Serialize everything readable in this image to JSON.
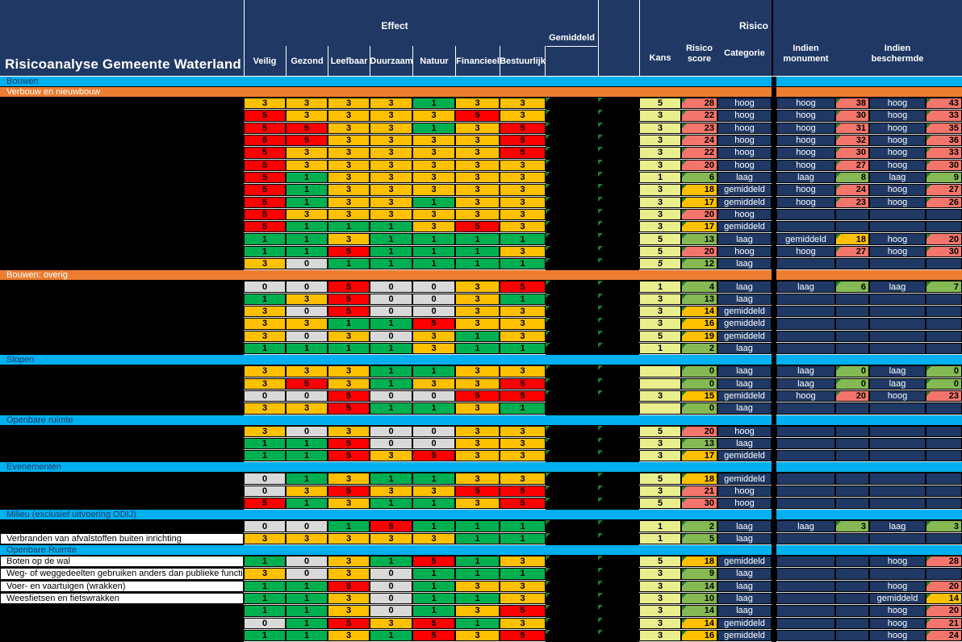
{
  "title": "Risicoanalyse Gemeente Waterland",
  "header": {
    "effect_group": "Effect",
    "effect_cols": [
      "Veilig",
      "Gezond",
      "Leefbaar",
      "Duurzaam",
      "Natuur",
      "Financieel",
      "Bestuurlijk"
    ],
    "gemiddeld": "Gemiddeld",
    "risico": "Risico",
    "kans": "Kans",
    "risico_score": "Risico score",
    "categorie": "Categorie",
    "indien_monument": "Indien monument",
    "indien_beschermde": "Indien beschermde"
  },
  "colors": {
    "navy": "#1f3864",
    "cyan": "#00b0f0",
    "orange_section": "#ed7d31",
    "kans_fill": "#eaef8d",
    "score_hoog": "#f4756b",
    "score_gemiddeld": "#ffc000",
    "score_laag": "#84b953",
    "triangle": "#1e7a34",
    "effect_legend": {
      "0": "#d9d9d9",
      "1": "#00b050",
      "3": "#ffc000",
      "5": "#ff0000"
    }
  },
  "rows": [
    {
      "t": "sec",
      "c": "cyan",
      "label": "Bouwen"
    },
    {
      "t": "sec",
      "c": "orange",
      "label": "Verbouw en nieuwbouw"
    },
    {
      "t": "d",
      "label": "",
      "effect": [
        3,
        3,
        3,
        3,
        1,
        3,
        3
      ],
      "kans": "5",
      "score": "28",
      "sc": "h",
      "cat": "hoog",
      "mon": {
        "c": "hoog",
        "s": "38",
        "sc": "h"
      },
      "bes": {
        "c": "hoog",
        "s": "43",
        "sc": "h"
      }
    },
    {
      "t": "d",
      "label": "",
      "effect": [
        5,
        3,
        3,
        3,
        3,
        5,
        3
      ],
      "kans": "3",
      "score": "22",
      "sc": "h",
      "cat": "hoog",
      "mon": {
        "c": "hoog",
        "s": "30",
        "sc": "h"
      },
      "bes": {
        "c": "hoog",
        "s": "33",
        "sc": "h"
      }
    },
    {
      "t": "d",
      "label": "",
      "effect": [
        5,
        5,
        3,
        3,
        1,
        3,
        5
      ],
      "kans": "3",
      "score": "23",
      "sc": "h",
      "cat": "hoog",
      "mon": {
        "c": "hoog",
        "s": "31",
        "sc": "h"
      },
      "bes": {
        "c": "hoog",
        "s": "35",
        "sc": "h"
      }
    },
    {
      "t": "d",
      "label": "",
      "effect": [
        5,
        5,
        3,
        3,
        3,
        3,
        5
      ],
      "kans": "3",
      "score": "24",
      "sc": "h",
      "cat": "hoog",
      "mon": {
        "c": "hoog",
        "s": "32",
        "sc": "h"
      },
      "bes": {
        "c": "hoog",
        "s": "36",
        "sc": "h"
      }
    },
    {
      "t": "d",
      "label": "",
      "effect": [
        5,
        3,
        3,
        3,
        3,
        3,
        5
      ],
      "kans": "3",
      "score": "22",
      "sc": "h",
      "cat": "hoog",
      "mon": {
        "c": "hoog",
        "s": "30",
        "sc": "h"
      },
      "bes": {
        "c": "hoog",
        "s": "33",
        "sc": "h"
      }
    },
    {
      "t": "d",
      "label": "",
      "effect": [
        5,
        3,
        3,
        3,
        3,
        3,
        3
      ],
      "kans": "3",
      "score": "20",
      "sc": "h",
      "cat": "hoog",
      "mon": {
        "c": "hoog",
        "s": "27",
        "sc": "h"
      },
      "bes": {
        "c": "hoog",
        "s": "30",
        "sc": "h"
      }
    },
    {
      "t": "d",
      "label": "",
      "effect": [
        5,
        1,
        3,
        3,
        3,
        3,
        3
      ],
      "kans": "1",
      "score": "6",
      "sc": "l",
      "cat": "laag",
      "mon": {
        "c": "laag",
        "s": "8",
        "sc": "l"
      },
      "bes": {
        "c": "laag",
        "s": "9",
        "sc": "l"
      }
    },
    {
      "t": "d",
      "label": "",
      "effect": [
        5,
        1,
        3,
        3,
        3,
        3,
        3
      ],
      "kans": "3",
      "score": "18",
      "sc": "m",
      "cat": "gemiddeld",
      "mon": {
        "c": "hoog",
        "s": "24",
        "sc": "h"
      },
      "bes": {
        "c": "hoog",
        "s": "27",
        "sc": "h"
      }
    },
    {
      "t": "d",
      "label": "",
      "effect": [
        5,
        1,
        3,
        3,
        1,
        3,
        3
      ],
      "kans": "3",
      "score": "17",
      "sc": "m",
      "cat": "gemiddeld",
      "mon": {
        "c": "hoog",
        "s": "23",
        "sc": "h"
      },
      "bes": {
        "c": "hoog",
        "s": "26",
        "sc": "h"
      }
    },
    {
      "t": "d",
      "label": "",
      "effect": [
        5,
        3,
        3,
        3,
        3,
        3,
        3
      ],
      "kans": "3",
      "score": "20",
      "sc": "h",
      "cat": "hoog",
      "mon": null,
      "bes": null
    },
    {
      "t": "d",
      "label": "",
      "effect": [
        5,
        1,
        1,
        1,
        3,
        5,
        3
      ],
      "kans": "3",
      "score": "17",
      "sc": "m",
      "cat": "gemiddeld",
      "mon": null,
      "bes": null
    },
    {
      "t": "d",
      "label": "",
      "effect": [
        1,
        1,
        3,
        1,
        1,
        1,
        1
      ],
      "kans": "5",
      "score": "13",
      "sc": "l",
      "cat": "laag",
      "mon": {
        "c": "gemiddeld",
        "s": "18",
        "sc": "m"
      },
      "bes": {
        "c": "hoog",
        "s": "20",
        "sc": "h"
      }
    },
    {
      "t": "d",
      "label": "",
      "effect": [
        1,
        1,
        5,
        1,
        1,
        1,
        3
      ],
      "kans": "5",
      "score": "20",
      "sc": "h",
      "cat": "hoog",
      "mon": {
        "c": "hoog",
        "s": "27",
        "sc": "h"
      },
      "bes": {
        "c": "hoog",
        "s": "30",
        "sc": "h"
      }
    },
    {
      "t": "d",
      "label": "",
      "effect": [
        3,
        0,
        1,
        1,
        1,
        1,
        1
      ],
      "kans": "5",
      "ki": true,
      "score": "12",
      "sc": "l",
      "cat": "laag",
      "mon": null,
      "bes": null
    },
    {
      "t": "sec",
      "c": "orange",
      "label": "Bouwen: overig"
    },
    {
      "t": "d",
      "label": "",
      "effect": [
        0,
        0,
        5,
        0,
        0,
        3,
        5
      ],
      "kans": "1",
      "score": "4",
      "sc": "l",
      "cat": "laag",
      "mon": {
        "c": "laag",
        "s": "6",
        "sc": "l"
      },
      "bes": {
        "c": "laag",
        "s": "7",
        "sc": "l"
      }
    },
    {
      "t": "d",
      "label": "",
      "effect": [
        1,
        3,
        5,
        0,
        0,
        3,
        1
      ],
      "kans": "3",
      "score": "13",
      "sc": "l",
      "cat": "laag",
      "mon": null,
      "bes": null
    },
    {
      "t": "d",
      "label": "",
      "effect": [
        3,
        0,
        5,
        0,
        0,
        3,
        3
      ],
      "kans": "3",
      "score": "14",
      "sc": "m",
      "cat": "gemiddeld",
      "mon": null,
      "bes": null
    },
    {
      "t": "d",
      "label": "",
      "effect": [
        3,
        3,
        1,
        1,
        5,
        3,
        3
      ],
      "kans": "3",
      "score": "16",
      "sc": "m",
      "cat": "gemiddeld",
      "mon": null,
      "bes": null
    },
    {
      "t": "d",
      "label": "",
      "effect": [
        3,
        0,
        3,
        0,
        3,
        1,
        3
      ],
      "kans": "5",
      "score": "19",
      "sc": "m",
      "cat": "gemiddeld",
      "mon": null,
      "bes": null
    },
    {
      "t": "d",
      "label": "",
      "effect": [
        1,
        1,
        1,
        1,
        3,
        1,
        1
      ],
      "kans": "1",
      "score": "2",
      "sc": "l",
      "cat": "laag",
      "mon": null,
      "bes": null
    },
    {
      "t": "sec",
      "c": "cyan",
      "label": "Slopen"
    },
    {
      "t": "d",
      "label": "",
      "effect": [
        3,
        3,
        3,
        1,
        1,
        3,
        3
      ],
      "kans": "",
      "score": "0",
      "sc": "l",
      "cat": "laag",
      "mon": {
        "c": "laag",
        "s": "0",
        "sc": "l"
      },
      "bes": {
        "c": "laag",
        "s": "0",
        "sc": "l"
      }
    },
    {
      "t": "d",
      "label": "",
      "effect": [
        3,
        5,
        3,
        1,
        3,
        3,
        5
      ],
      "kans": "",
      "score": "0",
      "sc": "l",
      "cat": "laag",
      "mon": {
        "c": "laag",
        "s": "0",
        "sc": "l"
      },
      "bes": {
        "c": "laag",
        "s": "0",
        "sc": "l"
      }
    },
    {
      "t": "d",
      "label": "",
      "effect": [
        0,
        0,
        5,
        0,
        0,
        5,
        5
      ],
      "kans": "3",
      "score": "15",
      "sc": "m",
      "cat": "gemiddeld",
      "mon": {
        "c": "hoog",
        "s": "20",
        "sc": "h"
      },
      "bes": {
        "c": "hoog",
        "s": "23",
        "sc": "h"
      }
    },
    {
      "t": "d",
      "label": "",
      "effect": [
        3,
        3,
        5,
        1,
        1,
        3,
        1
      ],
      "kans": "",
      "score": "0",
      "sc": "l",
      "cat": "laag",
      "mon": null,
      "bes": null,
      "tri": false
    },
    {
      "t": "sec",
      "c": "cyan",
      "label": "Openbare ruimte"
    },
    {
      "t": "d",
      "label": "",
      "effect": [
        3,
        0,
        3,
        0,
        0,
        3,
        3
      ],
      "kans": "5",
      "score": "20",
      "sc": "h",
      "cat": "hoog",
      "mon": null,
      "bes": null
    },
    {
      "t": "d",
      "label": "",
      "effect": [
        1,
        1,
        5,
        0,
        0,
        3,
        3
      ],
      "kans": "3",
      "score": "13",
      "sc": "l",
      "cat": "laag",
      "mon": null,
      "bes": null
    },
    {
      "t": "d",
      "label": "",
      "effect": [
        1,
        1,
        5,
        3,
        5,
        3,
        3
      ],
      "kans": "3",
      "score": "17",
      "sc": "m",
      "cat": "gemiddeld",
      "mon": null,
      "bes": null
    },
    {
      "t": "sec",
      "c": "cyan",
      "label": "Evenementen"
    },
    {
      "t": "d",
      "label": "",
      "effect": [
        0,
        1,
        3,
        1,
        1,
        3,
        3
      ],
      "kans": "5",
      "score": "18",
      "sc": "m",
      "cat": "gemiddeld",
      "mon": null,
      "bes": null
    },
    {
      "t": "d",
      "label": "",
      "effect": [
        0,
        3,
        5,
        3,
        3,
        5,
        5
      ],
      "kans": "3",
      "score": "21",
      "sc": "h",
      "cat": "hoog",
      "mon": null,
      "bes": null
    },
    {
      "t": "d",
      "label": "",
      "effect": [
        5,
        1,
        3,
        1,
        1,
        3,
        5
      ],
      "kans": "5",
      "score": "30",
      "sc": "h",
      "cat": "hoog",
      "mon": null,
      "bes": null
    },
    {
      "t": "sec",
      "c": "cyan",
      "label": "Milieu (exclusief uitvoering ODIJ)"
    },
    {
      "t": "d",
      "label": "",
      "effect": [
        0,
        0,
        1,
        5,
        1,
        1,
        1
      ],
      "kans": "1",
      "score": "2",
      "sc": "l",
      "cat": "laag",
      "mon": {
        "c": "laag",
        "s": "3",
        "sc": "l"
      },
      "bes": {
        "c": "laag",
        "s": "3",
        "sc": "l"
      }
    },
    {
      "t": "d",
      "label": "Verbranden van afvalstoffen buiten inrichting",
      "effect": [
        3,
        3,
        3,
        3,
        3,
        1,
        1
      ],
      "kans": "1",
      "score": "5",
      "sc": "l",
      "cat": "laag",
      "mon": null,
      "bes": null
    },
    {
      "t": "sec",
      "c": "cyan",
      "label": "Openbare Ruimte"
    },
    {
      "t": "d",
      "label": "Boten op de wal",
      "effect": [
        1,
        0,
        3,
        1,
        5,
        1,
        3
      ],
      "kans": "5",
      "score": "18",
      "sc": "m",
      "cat": "gemiddeld",
      "mon": null,
      "bes": {
        "c": "hoog",
        "s": "28",
        "sc": "h"
      }
    },
    {
      "t": "d",
      "label": "Weg- of weggedeelten gebruiken anders dan publieke functie",
      "effect": [
        3,
        0,
        3,
        0,
        1,
        1,
        1
      ],
      "kans": "3",
      "score": "9",
      "sc": "l",
      "cat": "laag",
      "mon": null,
      "bes": null
    },
    {
      "t": "d",
      "label": "Voer- en vaartuigen (wrakken)",
      "effect": [
        1,
        1,
        5,
        0,
        1,
        3,
        3
      ],
      "kans": "3",
      "score": "14",
      "sc": "l",
      "cat": "laag",
      "mon": null,
      "bes": {
        "c": "hoog",
        "s": "20",
        "sc": "h"
      }
    },
    {
      "t": "d",
      "label": "Weesfietsen en fietswrakken",
      "effect": [
        1,
        1,
        3,
        0,
        1,
        1,
        3
      ],
      "kans": "3",
      "score": "10",
      "sc": "l",
      "cat": "laag",
      "mon": null,
      "bes": {
        "c": "gemiddeld",
        "s": "14",
        "sc": "m"
      }
    },
    {
      "t": "d",
      "label": "",
      "effect": [
        1,
        1,
        3,
        0,
        1,
        3,
        5
      ],
      "kans": "3",
      "score": "14",
      "sc": "l",
      "cat": "laag",
      "mon": null,
      "bes": {
        "c": "hoog",
        "s": "20",
        "sc": "h"
      }
    },
    {
      "t": "d",
      "label": "",
      "effect": [
        0,
        1,
        5,
        3,
        5,
        1,
        3
      ],
      "kans": "3",
      "score": "14",
      "sc": "m",
      "cat": "gemiddeld",
      "mon": null,
      "bes": {
        "c": "hoog",
        "s": "21",
        "sc": "h"
      }
    },
    {
      "t": "d",
      "label": "",
      "effect": [
        1,
        1,
        3,
        1,
        5,
        3,
        5
      ],
      "kans": "3",
      "score": "16",
      "sc": "m",
      "cat": "gemiddeld",
      "mon": null,
      "bes": {
        "c": "hoog",
        "s": "24",
        "sc": "h"
      }
    }
  ]
}
